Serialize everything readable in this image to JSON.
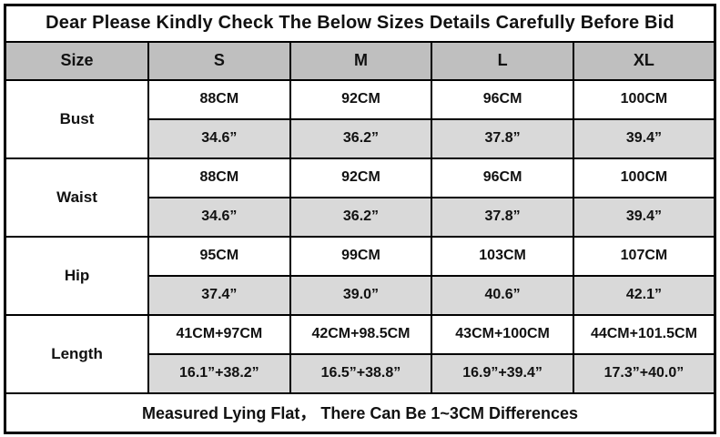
{
  "table": {
    "title": "Dear Please Kindly Check The Below Sizes Details Carefully Before Bid",
    "header": {
      "size_label": "Size",
      "columns": [
        "S",
        "M",
        "L",
        "XL"
      ]
    },
    "rows": [
      {
        "label": "Bust",
        "cm": [
          "88CM",
          "92CM",
          "96CM",
          "100CM"
        ],
        "inch": [
          "34.6”",
          "36.2”",
          "37.8”",
          "39.4”"
        ]
      },
      {
        "label": "Waist",
        "cm": [
          "88CM",
          "92CM",
          "96CM",
          "100CM"
        ],
        "inch": [
          "34.6”",
          "36.2”",
          "37.8”",
          "39.4”"
        ]
      },
      {
        "label": "Hip",
        "cm": [
          "95CM",
          "99CM",
          "103CM",
          "107CM"
        ],
        "inch": [
          "37.4”",
          "39.0”",
          "40.6”",
          "42.1”"
        ]
      },
      {
        "label": "Length",
        "cm": [
          "41CM+97CM",
          "42CM+98.5CM",
          "43CM+100CM",
          "44CM+101.5CM"
        ],
        "inch": [
          "16.1”+38.2”",
          "16.5”+38.8”",
          "16.9”+39.4”",
          "17.3”+40.0”"
        ]
      }
    ],
    "footer": "Measured Lying Flat， There Can Be 1~3CM Differences",
    "colors": {
      "header_bg": "#bfbfbf",
      "inch_row_bg": "#d9d9d9",
      "border": "#000000",
      "background": "#ffffff"
    }
  }
}
